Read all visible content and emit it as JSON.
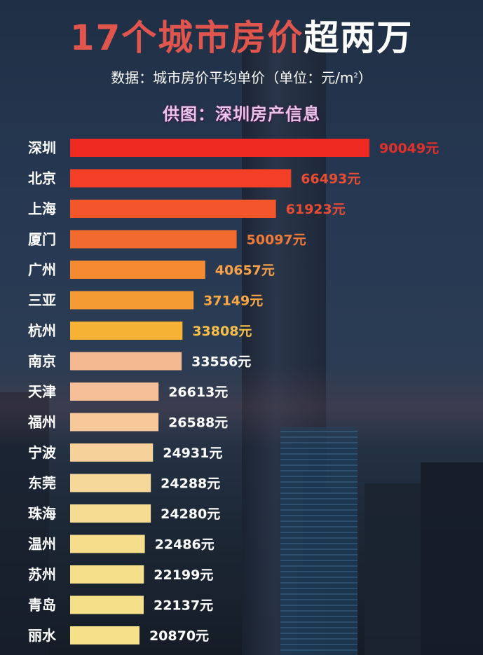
{
  "header": {
    "title_part1": "17个城市房价",
    "title_part2": "超两万",
    "subtitle_text": "数据：城市房价平均单价（单位：元/m",
    "subtitle_sup": "2",
    "subtitle_close": "）",
    "credit": "供图：深圳房产信息"
  },
  "chart_data": {
    "type": "bar",
    "orientation": "horizontal",
    "title": "17个城市房价超两万",
    "subtitle": "数据：城市房价平均单价（单位：元/m²）",
    "value_suffix": "元",
    "categories": [
      "深圳",
      "北京",
      "上海",
      "厦门",
      "广州",
      "三亚",
      "杭州",
      "南京",
      "天津",
      "福州",
      "宁波",
      "东莞",
      "珠海",
      "温州",
      "苏州",
      "青岛",
      "丽水"
    ],
    "values": [
      90049,
      66493,
      61923,
      50097,
      40657,
      37149,
      33808,
      33556,
      26613,
      26588,
      24931,
      24288,
      24280,
      22486,
      22199,
      22137,
      20870
    ],
    "bar_colors": [
      "#ee2a22",
      "#f23f26",
      "#f3562b",
      "#f26a2e",
      "#f58a30",
      "#f59b33",
      "#f6b235",
      "#f5b992",
      "#f6bf98",
      "#f6c89a",
      "#f6d29a",
      "#f6d89a",
      "#f5dc92",
      "#f5dd8c",
      "#f5df8a",
      "#f5e08a",
      "#f5e18a"
    ],
    "label_colors": [
      "#e0302a",
      "#e84d34",
      "#e84d34",
      "#f07a3a",
      "#f7a048",
      "#f7a844",
      "#f7c048",
      "#ffffff",
      "#ffffff",
      "#ffffff",
      "#ffffff",
      "#ffffff",
      "#ffffff",
      "#ffffff",
      "#ffffff",
      "#ffffff",
      "#ffffff"
    ],
    "grid": false,
    "legend": "none"
  }
}
